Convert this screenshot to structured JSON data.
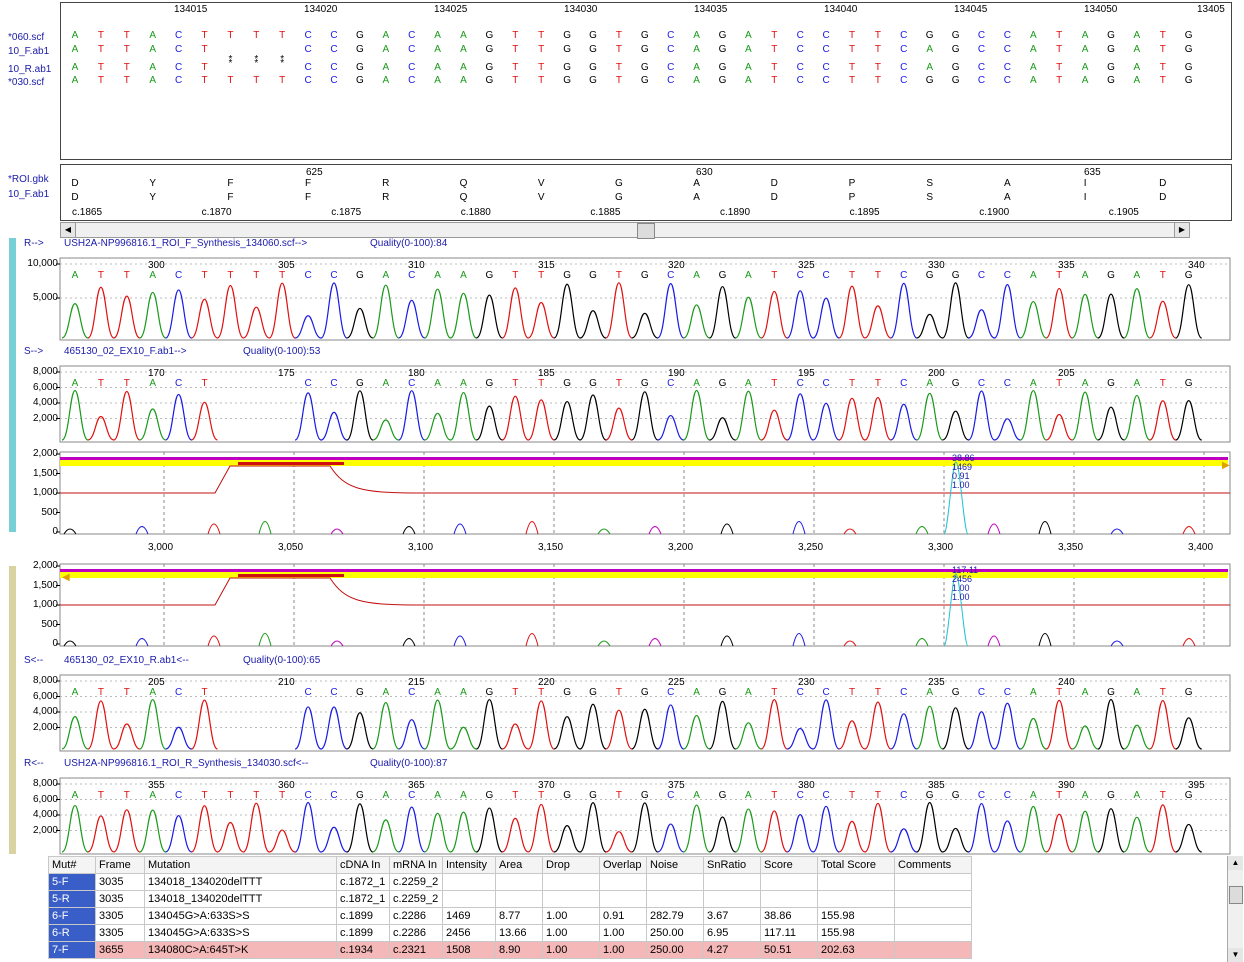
{
  "top_panel": {
    "positions": [
      "134015",
      "134020",
      "134025",
      "134030",
      "134035",
      "134040",
      "134045",
      "134050",
      "13405"
    ],
    "samples": [
      {
        "name": "*060.scf",
        "seq": "ATTACTTTTCCGACAAGTTGGTGCAGATCCTTCGGCCATAGATG"
      },
      {
        "name": "10_F.ab1",
        "seq": "ATTACT   CCGACAAGTTGGTGCAGATCCTTCAGCCATAGATG"
      },
      {
        "name": "10_R.ab1",
        "seq": "ATTACT   CCGACAAGTTGGTGCAGATCCTTCAGCCATAGATG"
      },
      {
        "name": "*030.scf",
        "seq": "ATTACTTTTCCGACAAGTTGGTGCAGATCCTTCGGCCATAGATG"
      }
    ]
  },
  "aa_panel": {
    "samples": [
      "*ROI.gbk",
      "10_F.ab1"
    ],
    "aa_positions": [
      "625",
      "630",
      "635"
    ],
    "aa_row1": [
      "D",
      "Y",
      "F",
      "F",
      "R",
      "Q",
      "V",
      "G",
      "A",
      "D",
      "P",
      "S",
      "A",
      "I",
      "D"
    ],
    "aa_row2": [
      "D",
      "Y",
      "F",
      "F",
      "R",
      "Q",
      "V",
      "G",
      "A",
      "D",
      "P",
      "S",
      "A",
      "I",
      "D"
    ],
    "cdna": [
      "c.1865",
      "c.1870",
      "c.1875",
      "c.1880",
      "c.1885",
      "c.1890",
      "c.1895",
      "c.1900",
      "c.1905"
    ]
  },
  "tracks": {
    "r_fwd": {
      "prefix": "R-->",
      "name": "USH2A-NP996816.1_ROI_F_Synthesis_134060.scf-->",
      "quality": "Quality(0-100):84",
      "yticks": [
        "10,000",
        "5,000"
      ],
      "positions": [
        "300",
        "305",
        "310",
        "315",
        "320",
        "325",
        "330",
        "335",
        "340"
      ],
      "seq": "ATTACTTTTCCGACAAGTTGGTGCAGATCCTTCGGCCATAGATG"
    },
    "s_fwd": {
      "prefix": "S-->",
      "name": "465130_02_EX10_F.ab1-->",
      "quality": "Quality(0-100):53",
      "yticks": [
        "8,000",
        "6,000",
        "4,000",
        "2,000"
      ],
      "positions": [
        "170",
        "175",
        "180",
        "185",
        "190",
        "195",
        "200",
        "205"
      ],
      "seq": "ATTACT   CCGACAAGTTGGTGCAGATCCTTCAGCCATAGATG"
    },
    "mut_fwd": {
      "yticks": [
        "2,000",
        "1,500",
        "1,000",
        "500",
        "0"
      ],
      "peak_labels": [
        "38.86",
        "1469",
        "0.91",
        "1.00"
      ]
    },
    "xaxis": [
      "3,000",
      "3,050",
      "3,100",
      "3,150",
      "3,200",
      "3,250",
      "3,300",
      "3,350",
      "3,400"
    ],
    "mut_rev": {
      "yticks": [
        "2,000",
        "1,500",
        "1,000",
        "500",
        "0"
      ],
      "peak_labels": [
        "117.11",
        "2456",
        "1.00",
        "1.00"
      ]
    },
    "s_rev": {
      "prefix": "S<--",
      "name": "465130_02_EX10_R.ab1<--",
      "quality": "Quality(0-100):65",
      "yticks": [
        "8,000",
        "6,000",
        "4,000",
        "2,000"
      ],
      "positions": [
        "205",
        "210",
        "215",
        "220",
        "225",
        "230",
        "235",
        "240"
      ],
      "seq": "ATTACT   CCGACAAGTTGGTGCAGATCCTTCAGCCATAGATG"
    },
    "r_rev": {
      "prefix": "R<--",
      "name": "USH2A-NP996816.1_ROI_R_Synthesis_134030.scf<--",
      "quality": "Quality(0-100):87",
      "yticks": [
        "8,000",
        "6,000",
        "4,000",
        "2,000"
      ],
      "positions": [
        "355",
        "360",
        "365",
        "370",
        "375",
        "380",
        "385",
        "390",
        "395"
      ],
      "seq": "ATTACTTTTCCGACAAGTTGGTGCAGATCCTTCGGCCATAGATG"
    }
  },
  "table": {
    "headers": [
      "Mut#",
      "Frame",
      "Mutation",
      "cDNA In",
      "mRNA In",
      "Intensity",
      "Area",
      "Drop",
      "Overlap",
      "Noise",
      "SnRatio",
      "Score",
      "Total Score",
      "Comments"
    ],
    "rows": [
      [
        "5-F",
        "3035",
        "134018_134020delTTT",
        "c.1872_1",
        "c.2259_2",
        "",
        "",
        "",
        "",
        "",
        "",
        "",
        "",
        ""
      ],
      [
        "5-R",
        "3035",
        "134018_134020delTTT",
        "c.1872_1",
        "c.2259_2",
        "",
        "",
        "",
        "",
        "",
        "",
        "",
        "",
        ""
      ],
      [
        "6-F",
        "3305",
        "134045G>A:633S>S",
        "c.1899",
        "c.2286",
        "1469",
        "8.77",
        "1.00",
        "0.91",
        "282.79",
        "3.67",
        "38.86",
        "155.98",
        ""
      ],
      [
        "6-R",
        "3305",
        "134045G>A:633S>S",
        "c.1899",
        "c.2286",
        "2456",
        "13.66",
        "1.00",
        "1.00",
        "250.00",
        "6.95",
        "117.11",
        "155.98",
        ""
      ],
      [
        "7-F",
        "3655",
        "134080C>A:645T>K",
        "c.1934",
        "c.2321",
        "1508",
        "8.90",
        "1.00",
        "1.00",
        "250.00",
        "4.27",
        "50.51",
        "202.63",
        ""
      ]
    ]
  },
  "colors": {
    "A": "#1a9a1a",
    "C": "#1a1ae6",
    "G": "#000000",
    "T": "#e01010",
    "pos_green": "#1a9a1a"
  }
}
